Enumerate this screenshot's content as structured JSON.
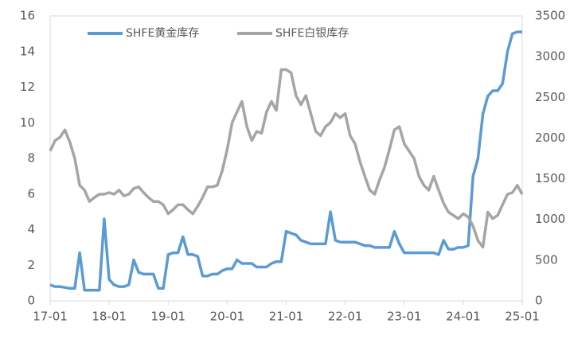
{
  "chart_data": {
    "type": "line",
    "categories": [
      "17-01",
      null,
      null,
      null,
      null,
      null,
      null,
      null,
      null,
      null,
      null,
      null,
      "18-01",
      null,
      null,
      null,
      null,
      null,
      null,
      null,
      null,
      null,
      null,
      null,
      "19-01",
      null,
      null,
      null,
      null,
      null,
      null,
      null,
      null,
      null,
      null,
      null,
      "20-01",
      null,
      null,
      null,
      null,
      null,
      null,
      null,
      null,
      null,
      null,
      null,
      "21-01",
      null,
      null,
      null,
      null,
      null,
      null,
      null,
      null,
      null,
      null,
      null,
      "22-01",
      null,
      null,
      null,
      null,
      null,
      null,
      null,
      null,
      null,
      null,
      null,
      "23-01",
      null,
      null,
      null,
      null,
      null,
      null,
      null,
      null,
      null,
      null,
      null,
      "24-01",
      null,
      null,
      null,
      null,
      null,
      null,
      null,
      null,
      null,
      null,
      null,
      "25-01"
    ],
    "series": [
      {
        "name": "SHFE黄金库存",
        "color": "#5b9bd5",
        "values": [
          0.9,
          0.8,
          0.8,
          0.75,
          0.7,
          0.7,
          2.7,
          0.6,
          0.6,
          0.6,
          0.6,
          4.6,
          1.2,
          0.9,
          0.8,
          0.8,
          0.9,
          2.3,
          1.6,
          1.5,
          1.5,
          1.5,
          0.7,
          0.7,
          2.6,
          2.7,
          2.7,
          3.6,
          2.6,
          2.6,
          2.5,
          1.4,
          1.4,
          1.5,
          1.5,
          1.7,
          1.8,
          1.8,
          2.3,
          2.1,
          2.1,
          2.1,
          1.9,
          1.9,
          1.9,
          2.1,
          2.2,
          2.2,
          3.9,
          3.8,
          3.7,
          3.4,
          3.3,
          3.2,
          3.2,
          3.2,
          3.2,
          5.0,
          3.4,
          3.3,
          3.3,
          3.3,
          3.3,
          3.2,
          3.1,
          3.1,
          3.0,
          3.0,
          3.0,
          3.0,
          3.9,
          3.2,
          2.7,
          2.7,
          2.7,
          2.7,
          2.7,
          2.7,
          2.7,
          2.6,
          3.4,
          2.9,
          2.9,
          3.0,
          3.0,
          3.1,
          7.0,
          8.0,
          10.5,
          11.5,
          11.8,
          11.8,
          12.2,
          14.0,
          15.0,
          15.1,
          15.1
        ]
      },
      {
        "name": "SHFE白银库存",
        "color": "#a5a5a5",
        "axis": "y2",
        "values": [
          1840,
          1970,
          2010,
          2100,
          1950,
          1750,
          1420,
          1360,
          1220,
          1270,
          1310,
          1310,
          1330,
          1310,
          1360,
          1290,
          1310,
          1380,
          1400,
          1330,
          1270,
          1220,
          1220,
          1180,
          1070,
          1120,
          1180,
          1180,
          1120,
          1070,
          1160,
          1270,
          1400,
          1400,
          1420,
          1600,
          1860,
          2190,
          2320,
          2450,
          2140,
          1970,
          2080,
          2060,
          2320,
          2450,
          2340,
          2840,
          2840,
          2800,
          2520,
          2410,
          2520,
          2300,
          2080,
          2030,
          2140,
          2190,
          2300,
          2250,
          2300,
          2030,
          1930,
          1710,
          1530,
          1360,
          1310,
          1490,
          1640,
          1860,
          2100,
          2140,
          1930,
          1840,
          1750,
          1530,
          1420,
          1360,
          1530,
          1360,
          1200,
          1090,
          1050,
          1010,
          1070,
          1030,
          920,
          740,
          660,
          1090,
          1010,
          1050,
          1180,
          1310,
          1330,
          1420,
          1310
        ]
      }
    ],
    "ylim": [
      0,
      16
    ],
    "yticks": [
      0,
      2,
      4,
      6,
      8,
      10,
      12,
      14,
      16
    ],
    "y2lim": [
      0,
      3500
    ],
    "y2ticks": [
      0,
      500,
      1000,
      1500,
      2000,
      2500,
      3000,
      3500
    ],
    "grid": false,
    "legend": "top"
  }
}
